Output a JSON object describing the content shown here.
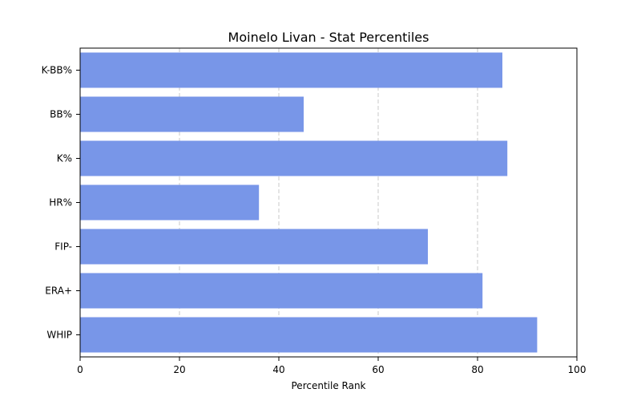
{
  "chart_data": {
    "type": "bar",
    "orientation": "horizontal",
    "title": "Moinelo Livan - Stat Percentiles",
    "xlabel": "Percentile Rank",
    "ylabel": "",
    "categories": [
      "K-BB%",
      "BB%",
      "K%",
      "HR%",
      "FIP-",
      "ERA+",
      "WHIP"
    ],
    "values": [
      85,
      45,
      86,
      36,
      70,
      81,
      92
    ],
    "xlim": [
      0,
      100
    ],
    "xticks": [
      "0",
      "20",
      "40",
      "60",
      "80",
      "100"
    ],
    "grid": "vertical dashed",
    "colors": {
      "bar": "#7896e8",
      "grid": "#c8c8c8",
      "axis": "#000000"
    }
  }
}
